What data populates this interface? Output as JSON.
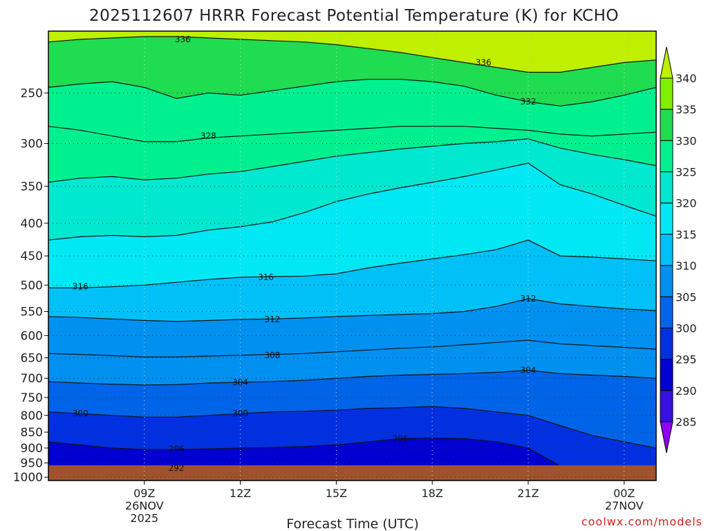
{
  "chart_data": {
    "type": "heatmap",
    "title": "2025112607 HRRR Forecast Potential Temperature (K) for KCHO",
    "xlabel": "Forecast Time (UTC)",
    "ylabel": "",
    "credit": "coolwx.com/models",
    "x_ticks": [
      {
        "label": "09Z",
        "sub": "26NOV",
        "sub2": "2025",
        "hour": 9
      },
      {
        "label": "12Z",
        "sub": "",
        "sub2": "",
        "hour": 12
      },
      {
        "label": "15Z",
        "sub": "",
        "sub2": "",
        "hour": 15
      },
      {
        "label": "18Z",
        "sub": "",
        "sub2": "",
        "hour": 18
      },
      {
        "label": "21Z",
        "sub": "",
        "sub2": "",
        "hour": 21
      },
      {
        "label": "00Z",
        "sub": "27NOV",
        "sub2": "",
        "hour": 24
      }
    ],
    "x_range_hours": [
      6,
      25
    ],
    "y_ticks": [
      "250",
      "300",
      "350",
      "400",
      "450",
      "500",
      "550",
      "600",
      "650",
      "700",
      "750",
      "800",
      "850",
      "900",
      "950",
      "1000"
    ],
    "y_range_hpa": [
      200,
      1012
    ],
    "y_scale": "log-pressure",
    "grid": "dotted",
    "colorbar": {
      "labels": [
        "340",
        "335",
        "330",
        "325",
        "320",
        "315",
        "310",
        "305",
        "300",
        "295",
        "290",
        "285"
      ],
      "colors": [
        "#bef000",
        "#80f000",
        "#20dc50",
        "#00f090",
        "#00e8d0",
        "#00e8f4",
        "#00c0f8",
        "#0090f0",
        "#0064e8",
        "#0030e0",
        "#0000d0",
        "#3810e0",
        "#6800e8",
        "#9000f0"
      ]
    },
    "isentropes": {
      "times": [
        6,
        7,
        8,
        9,
        10,
        11,
        12,
        13,
        14,
        15,
        16,
        17,
        18,
        19,
        20,
        21,
        22,
        23,
        24,
        25
      ],
      "series": [
        {
          "theta": 292,
          "labeled": true,
          "p": [
            962,
            964,
            966,
            968,
            968,
            968,
            966,
            965,
            965,
            966,
            1000,
            1000,
            1000,
            1000,
            1000,
            1000,
            1000,
            1000,
            1000,
            1000
          ]
        },
        {
          "theta": 296,
          "labeled": true,
          "p": [
            880,
            890,
            900,
            905,
            905,
            903,
            900,
            898,
            895,
            890,
            880,
            870,
            868,
            870,
            880,
            900,
            960,
            1000,
            1000,
            1000
          ]
        },
        {
          "theta": 300,
          "labeled": true,
          "p": [
            790,
            795,
            800,
            805,
            805,
            800,
            795,
            790,
            788,
            785,
            780,
            778,
            775,
            780,
            790,
            800,
            830,
            860,
            880,
            900
          ]
        },
        {
          "theta": 304,
          "labeled": true,
          "p": [
            708,
            712,
            715,
            717,
            716,
            712,
            710,
            708,
            705,
            700,
            695,
            692,
            690,
            688,
            685,
            680,
            688,
            692,
            695,
            700
          ]
        },
        {
          "theta": 308,
          "labeled": true,
          "p": [
            640,
            642,
            645,
            648,
            648,
            646,
            644,
            642,
            640,
            636,
            632,
            628,
            625,
            620,
            615,
            610,
            618,
            622,
            626,
            630
          ]
        },
        {
          "theta": 312,
          "labeled": true,
          "p": [
            560,
            562,
            565,
            568,
            570,
            568,
            566,
            565,
            563,
            560,
            558,
            556,
            554,
            550,
            540,
            525,
            535,
            540,
            545,
            548
          ]
        },
        {
          "theta": 316,
          "labeled": true,
          "p": [
            505,
            505,
            503,
            500,
            495,
            490,
            486,
            485,
            484,
            480,
            470,
            462,
            455,
            448,
            440,
            425,
            450,
            452,
            455,
            458
          ]
        },
        {
          "theta": 320,
          "labeled": false,
          "p": [
            425,
            420,
            418,
            420,
            418,
            410,
            405,
            398,
            385,
            370,
            360,
            352,
            345,
            338,
            330,
            322,
            348,
            360,
            375,
            390
          ]
        },
        {
          "theta": 324,
          "labeled": false,
          "p": [
            345,
            340,
            338,
            342,
            340,
            335,
            332,
            326,
            320,
            314,
            310,
            306,
            303,
            300,
            298,
            295,
            305,
            312,
            318,
            325
          ]
        },
        {
          "theta": 328,
          "labeled": true,
          "p": [
            282,
            286,
            292,
            298,
            298,
            294,
            292,
            290,
            288,
            286,
            284,
            282,
            282,
            282,
            284,
            286,
            290,
            292,
            290,
            288
          ]
        },
        {
          "theta": 332,
          "labeled": true,
          "p": [
            245,
            242,
            240,
            245,
            255,
            250,
            252,
            248,
            244,
            240,
            238,
            238,
            240,
            244,
            252,
            258,
            262,
            258,
            252,
            245
          ]
        },
        {
          "theta": 336,
          "labeled": true,
          "p": [
            208,
            206,
            205,
            204,
            204,
            205,
            206,
            207,
            208,
            210,
            213,
            216,
            220,
            224,
            228,
            232,
            232,
            228,
            224,
            222
          ]
        }
      ]
    },
    "labels": [
      {
        "text": "336",
        "t": 10.2,
        "p": 206
      },
      {
        "text": "336",
        "t": 19.6,
        "p": 224
      },
      {
        "text": "332",
        "t": 21.0,
        "p": 258
      },
      {
        "text": "328",
        "t": 11.0,
        "p": 292
      },
      {
        "text": "316",
        "t": 7.0,
        "p": 503
      },
      {
        "text": "316",
        "t": 12.8,
        "p": 486
      },
      {
        "text": "312",
        "t": 13.0,
        "p": 566
      },
      {
        "text": "312",
        "t": 21.0,
        "p": 525
      },
      {
        "text": "308",
        "t": 13.0,
        "p": 644
      },
      {
        "text": "304",
        "t": 12.0,
        "p": 710
      },
      {
        "text": "304",
        "t": 21.0,
        "p": 680
      },
      {
        "text": "300",
        "t": 7.0,
        "p": 795
      },
      {
        "text": "300",
        "t": 12.0,
        "p": 795
      },
      {
        "text": "296",
        "t": 10.0,
        "p": 903
      },
      {
        "text": "296",
        "t": 17.0,
        "p": 870
      },
      {
        "text": "292",
        "t": 10.0,
        "p": 968
      }
    ],
    "terrain_hpa": 1000
  }
}
